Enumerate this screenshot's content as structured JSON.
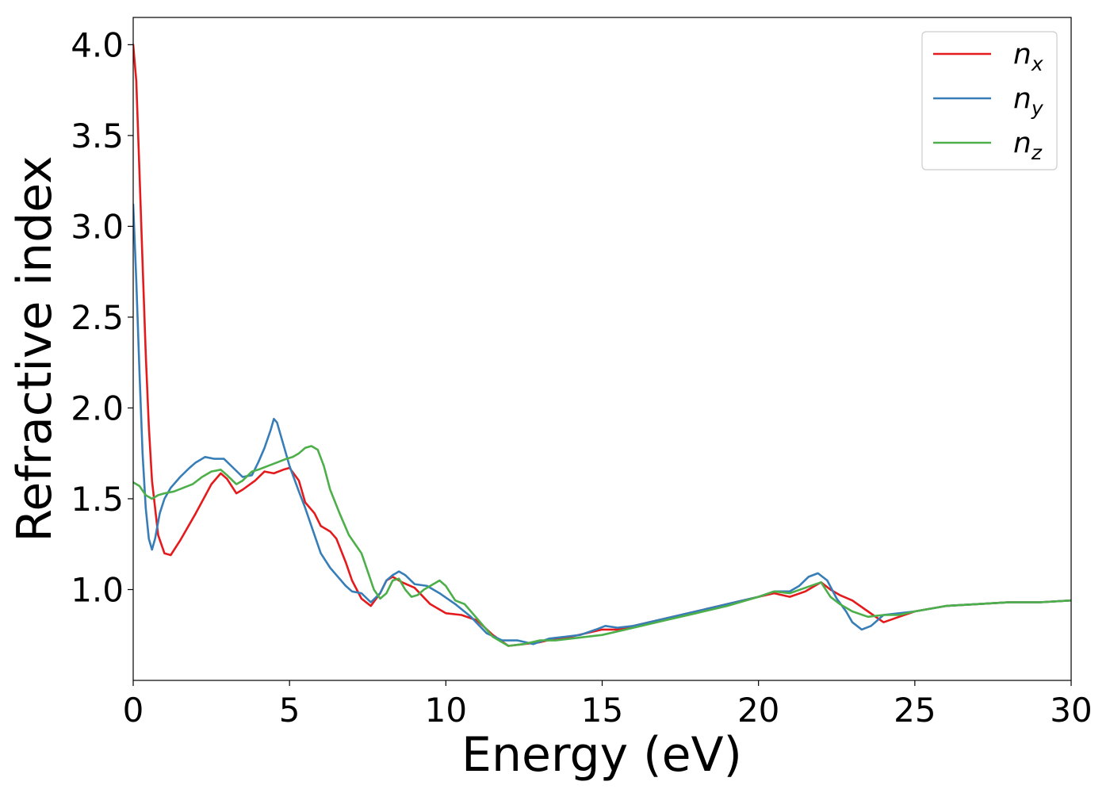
{
  "chart_data": {
    "type": "line",
    "title": "",
    "xlabel": "Energy (eV)",
    "ylabel": "Refractive index",
    "xlim": [
      0,
      30
    ],
    "ylim": [
      0.5,
      4.15
    ],
    "xticks": [
      0,
      5,
      10,
      15,
      20,
      25,
      30
    ],
    "xtick_labels": [
      "0",
      "5",
      "10",
      "15",
      "20",
      "25",
      "30"
    ],
    "yticks": [
      1.0,
      1.5,
      2.0,
      2.5,
      3.0,
      3.5,
      4.0
    ],
    "ytick_labels": [
      "1.0",
      "1.5",
      "2.0",
      "2.5",
      "3.0",
      "3.5",
      "4.0"
    ],
    "grid": false,
    "legend_position": "top-right",
    "series": [
      {
        "name": "n",
        "subscript": "x",
        "color": "#e41a1c",
        "x": [
          0,
          0.1,
          0.2,
          0.3,
          0.4,
          0.5,
          0.6,
          0.8,
          1.0,
          1.2,
          1.5,
          2.0,
          2.5,
          2.8,
          3.0,
          3.3,
          3.5,
          3.9,
          4.2,
          4.5,
          4.8,
          5.0,
          5.3,
          5.5,
          5.8,
          6.0,
          6.3,
          6.5,
          6.8,
          7.0,
          7.3,
          7.6,
          7.9,
          8.1,
          8.3,
          8.6,
          9.0,
          9.5,
          10.0,
          10.5,
          11.0,
          11.5,
          12.0,
          12.5,
          13.0,
          13.5,
          14.0,
          14.5,
          15.0,
          15.5,
          16.0,
          17.0,
          18.0,
          19.0,
          20.0,
          20.5,
          21.0,
          21.5,
          22.0,
          22.3,
          22.6,
          23.0,
          23.5,
          24.0,
          24.5,
          25.0,
          26.0,
          27.0,
          28.0,
          29.0,
          30.0
        ],
        "y": [
          4.0,
          3.8,
          3.3,
          2.8,
          2.3,
          1.9,
          1.6,
          1.3,
          1.2,
          1.19,
          1.27,
          1.42,
          1.58,
          1.64,
          1.61,
          1.53,
          1.55,
          1.6,
          1.65,
          1.64,
          1.66,
          1.67,
          1.6,
          1.48,
          1.42,
          1.35,
          1.32,
          1.28,
          1.15,
          1.05,
          0.95,
          0.91,
          0.98,
          1.05,
          1.07,
          1.04,
          1.01,
          0.92,
          0.87,
          0.86,
          0.83,
          0.75,
          0.69,
          0.7,
          0.71,
          0.73,
          0.74,
          0.76,
          0.78,
          0.78,
          0.8,
          0.84,
          0.88,
          0.92,
          0.96,
          0.98,
          0.96,
          0.99,
          1.04,
          1.0,
          0.97,
          0.94,
          0.88,
          0.82,
          0.85,
          0.88,
          0.91,
          0.92,
          0.93,
          0.93,
          0.94
        ]
      },
      {
        "name": "n",
        "subscript": "y",
        "color": "#377eb8",
        "x": [
          0,
          0.1,
          0.2,
          0.3,
          0.4,
          0.5,
          0.6,
          0.7,
          0.85,
          1.0,
          1.2,
          1.5,
          1.8,
          2.0,
          2.3,
          2.6,
          2.9,
          3.2,
          3.5,
          3.8,
          4.0,
          4.2,
          4.4,
          4.5,
          4.6,
          4.8,
          5.0,
          5.3,
          5.5,
          5.8,
          6.0,
          6.3,
          6.5,
          6.8,
          7.0,
          7.3,
          7.6,
          7.9,
          8.1,
          8.3,
          8.5,
          8.7,
          9.0,
          9.4,
          9.8,
          10.3,
          10.8,
          11.3,
          11.8,
          12.3,
          12.8,
          13.3,
          13.8,
          14.3,
          14.8,
          15.1,
          15.5,
          16.0,
          17.0,
          18.0,
          19.0,
          20.0,
          20.5,
          21.0,
          21.3,
          21.6,
          21.9,
          22.2,
          22.5,
          22.8,
          23.0,
          23.3,
          23.6,
          24.0,
          24.5,
          25.0,
          26.0,
          27.0,
          28.0,
          29.0,
          30.0
        ],
        "y": [
          3.12,
          2.7,
          2.2,
          1.75,
          1.45,
          1.28,
          1.22,
          1.28,
          1.42,
          1.5,
          1.56,
          1.62,
          1.67,
          1.7,
          1.73,
          1.72,
          1.72,
          1.67,
          1.62,
          1.63,
          1.7,
          1.78,
          1.88,
          1.94,
          1.92,
          1.8,
          1.68,
          1.54,
          1.45,
          1.3,
          1.2,
          1.12,
          1.08,
          1.02,
          0.99,
          0.98,
          0.93,
          0.98,
          1.05,
          1.08,
          1.1,
          1.08,
          1.03,
          1.02,
          0.98,
          0.92,
          0.85,
          0.76,
          0.72,
          0.72,
          0.7,
          0.73,
          0.74,
          0.75,
          0.78,
          0.8,
          0.79,
          0.8,
          0.84,
          0.88,
          0.92,
          0.96,
          0.99,
          0.99,
          1.02,
          1.07,
          1.09,
          1.05,
          0.95,
          0.88,
          0.82,
          0.78,
          0.8,
          0.86,
          0.87,
          0.88,
          0.91,
          0.92,
          0.93,
          0.93,
          0.94
        ]
      },
      {
        "name": "n",
        "subscript": "z",
        "color": "#4daf4a",
        "x": [
          0,
          0.2,
          0.4,
          0.6,
          0.8,
          1.0,
          1.3,
          1.6,
          1.9,
          2.2,
          2.5,
          2.8,
          3.0,
          3.3,
          3.5,
          3.8,
          4.0,
          4.3,
          4.6,
          4.9,
          5.1,
          5.3,
          5.5,
          5.7,
          5.9,
          6.1,
          6.3,
          6.6,
          6.9,
          7.1,
          7.3,
          7.5,
          7.7,
          7.9,
          8.1,
          8.3,
          8.5,
          8.7,
          8.9,
          9.1,
          9.3,
          9.5,
          9.8,
          10.0,
          10.3,
          10.6,
          11.0,
          11.5,
          12.0,
          12.5,
          13.0,
          13.5,
          14.0,
          15.0,
          16.0,
          17.0,
          18.0,
          19.0,
          20.0,
          20.5,
          21.0,
          21.5,
          22.0,
          22.3,
          22.6,
          23.0,
          23.5,
          24.0,
          24.5,
          25.0,
          26.0,
          27.0,
          28.0,
          29.0,
          30.0
        ],
        "y": [
          1.59,
          1.57,
          1.52,
          1.5,
          1.52,
          1.53,
          1.54,
          1.56,
          1.58,
          1.62,
          1.65,
          1.66,
          1.63,
          1.58,
          1.6,
          1.65,
          1.66,
          1.68,
          1.7,
          1.72,
          1.73,
          1.75,
          1.78,
          1.79,
          1.77,
          1.68,
          1.55,
          1.42,
          1.3,
          1.25,
          1.2,
          1.1,
          1.0,
          0.95,
          0.98,
          1.05,
          1.06,
          1.0,
          0.96,
          0.97,
          1.0,
          1.02,
          1.05,
          1.02,
          0.94,
          0.92,
          0.84,
          0.74,
          0.69,
          0.7,
          0.72,
          0.72,
          0.73,
          0.75,
          0.79,
          0.83,
          0.87,
          0.91,
          0.96,
          0.99,
          0.98,
          1.01,
          1.04,
          0.96,
          0.92,
          0.88,
          0.85,
          0.86,
          0.86,
          0.88,
          0.91,
          0.92,
          0.93,
          0.93,
          0.94
        ]
      }
    ]
  }
}
